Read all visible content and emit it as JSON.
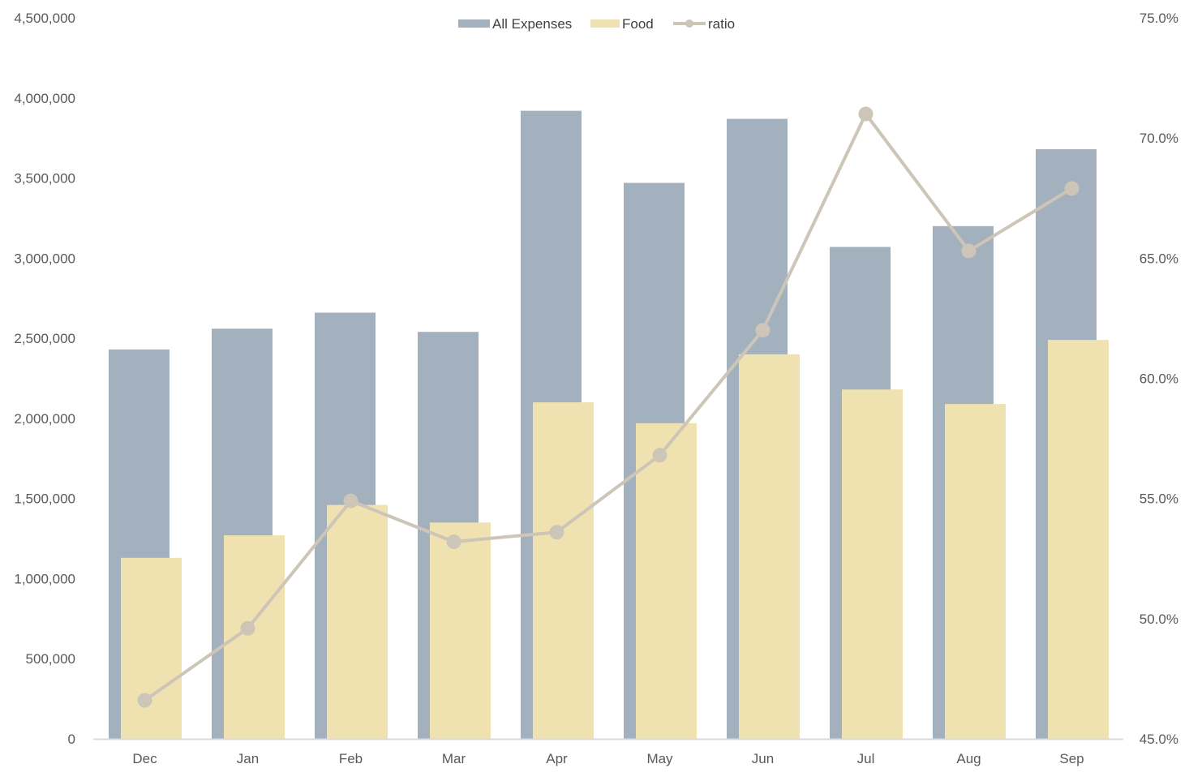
{
  "chart_data": {
    "type": "bar",
    "title": "",
    "xlabel": "",
    "ylabel": "",
    "categories": [
      "Dec",
      "Jan",
      "Feb",
      "Mar",
      "Apr",
      "May",
      "Jun",
      "Jul",
      "Aug",
      "Sep"
    ],
    "series": [
      {
        "name": "All Expenses",
        "type": "bar",
        "axis": "left",
        "color": "#a3b1bf",
        "values": [
          2430000,
          2560000,
          2660000,
          2540000,
          3920000,
          3470000,
          3870000,
          3070000,
          3200000,
          3680000
        ]
      },
      {
        "name": "Food",
        "type": "bar",
        "axis": "left",
        "color": "#efe2b0",
        "values": [
          1130000,
          1270000,
          1460000,
          1350000,
          2100000,
          1970000,
          2400000,
          2180000,
          2090000,
          2490000
        ]
      },
      {
        "name": "ratio",
        "type": "line",
        "axis": "right",
        "color": "#cdc5b7",
        "values": [
          46.6,
          49.6,
          54.9,
          53.2,
          53.6,
          56.8,
          62.0,
          71.0,
          65.3,
          67.9
        ]
      }
    ],
    "y_left": {
      "min": 0,
      "max": 4500000,
      "ticks": [
        "0",
        "500,000",
        "1,000,000",
        "1,500,000",
        "2,000,000",
        "2,500,000",
        "3,000,000",
        "3,500,000",
        "4,000,000",
        "4,500,000"
      ],
      "tick_values": [
        0,
        500000,
        1000000,
        1500000,
        2000000,
        2500000,
        3000000,
        3500000,
        4000000,
        4500000
      ]
    },
    "y_right": {
      "min": 45,
      "max": 75,
      "ticks": [
        "45.0%",
        "50.0%",
        "55.0%",
        "60.0%",
        "65.0%",
        "70.0%",
        "75.0%"
      ],
      "tick_values": [
        45,
        50,
        55,
        60,
        65,
        70,
        75
      ]
    },
    "grid": false,
    "legend_position": "top-center",
    "axis_color": "#d9d9d9"
  }
}
